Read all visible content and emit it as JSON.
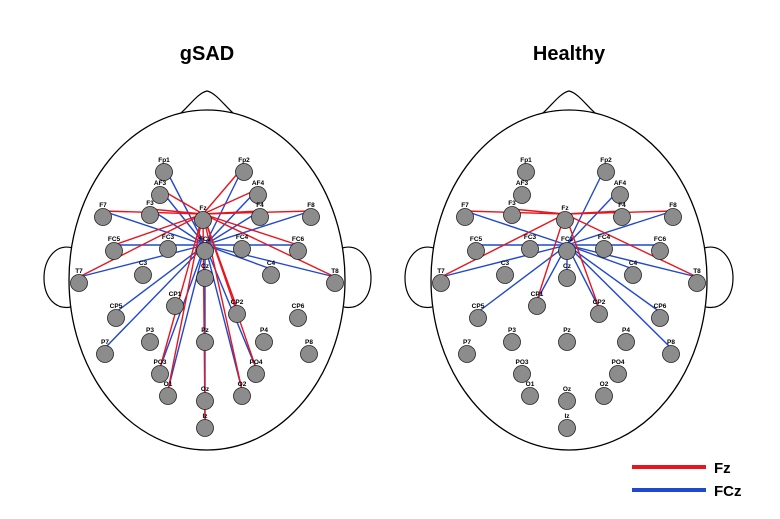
{
  "panels": [
    {
      "title": "gSAD",
      "connections": {
        "Fz": [
          "Fp2",
          "AF3",
          "AF4",
          "F7",
          "F3",
          "F4",
          "F8",
          "FC5",
          "FC6",
          "T7",
          "T8",
          "CP2",
          "PO3",
          "PO4",
          "O1",
          "O2",
          "Iz"
        ],
        "FCz": [
          "Fp1",
          "Fp2",
          "AF3",
          "AF4",
          "F7",
          "F3",
          "F4",
          "F8",
          "FC5",
          "FC6",
          "T7",
          "T8",
          "C4",
          "CP5",
          "P7",
          "PO3",
          "PO4",
          "O1",
          "O2",
          "Iz"
        ]
      }
    },
    {
      "title": "Healthy",
      "connections": {
        "Fz": [
          "F7",
          "F3",
          "F4",
          "F8",
          "T7",
          "T8",
          "CP1",
          "CP2"
        ],
        "FCz": [
          "Fp2",
          "AF4",
          "F7",
          "F8",
          "FC5",
          "FC6",
          "T7",
          "T8",
          "CP5",
          "CP6",
          "P8",
          "C4",
          "Cz",
          "CP1",
          "CP2"
        ]
      }
    }
  ],
  "legend": [
    {
      "label": "Fz",
      "color": "#e8151e"
    },
    {
      "label": "FCz",
      "color": "#1f48cf"
    }
  ],
  "colors": {
    "fz": "#e8151e",
    "fcz": "#1f48cf",
    "electrode": "#8c8c8c",
    "outline": "#000000"
  }
}
